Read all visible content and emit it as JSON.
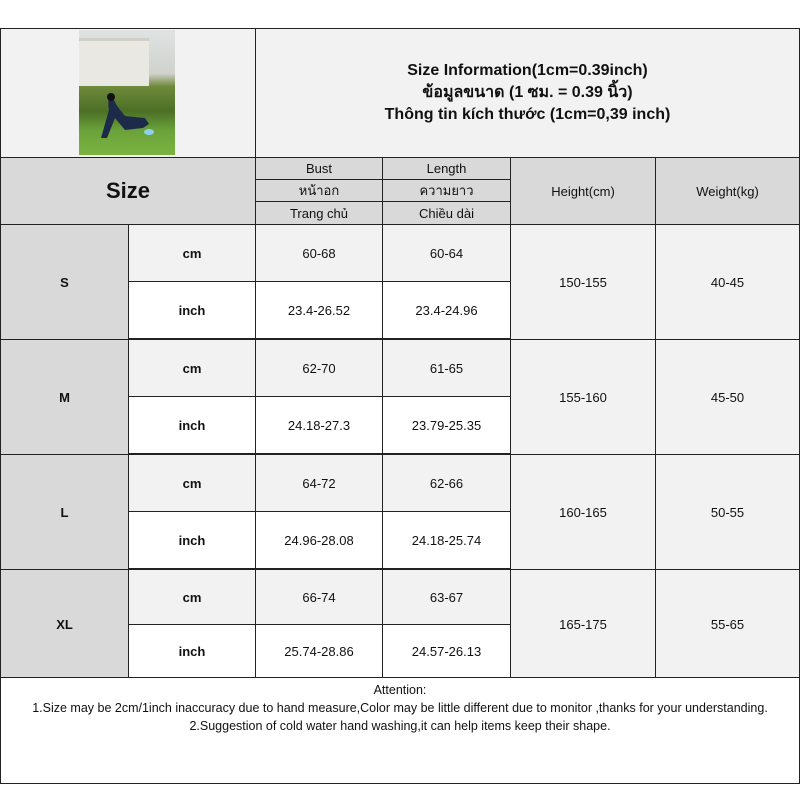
{
  "header": {
    "title_lines": [
      "Size Information(1cm=0.39inch)",
      "ข้อมูลขนาด (1 ซม. = 0.39 นิ้ว)",
      "Thông tin kích thước (1cm=0,39 inch)"
    ]
  },
  "columns": {
    "size": "Size",
    "bust": [
      "Bust",
      "หน้าอก",
      "Trang chủ"
    ],
    "length": [
      "Length",
      "ความยาว",
      "Chiều dài"
    ],
    "height": "Height(cm)",
    "weight": "Weight(kg)"
  },
  "sizes": [
    {
      "size": "S",
      "cm_label": "cm",
      "inch_label": "inch",
      "bust_cm": "60-68",
      "length_cm": "60-64",
      "bust_inch": "23.4-26.52",
      "length_inch": "23.4-24.96",
      "height": "150-155",
      "weight": "40-45"
    },
    {
      "size": "M",
      "cm_label": "cm",
      "inch_label": "inch",
      "bust_cm": "62-70",
      "length_cm": "61-65",
      "bust_inch": "24.18-27.3",
      "length_inch": "23.79-25.35",
      "height": "155-160",
      "weight": "45-50"
    },
    {
      "size": "L",
      "cm_label": "cm",
      "inch_label": "inch",
      "bust_cm": "64-72",
      "length_cm": "62-66",
      "bust_inch": "24.96-28.08",
      "length_inch": "24.18-25.74",
      "height": "160-165",
      "weight": "50-55"
    },
    {
      "size": "XL",
      "cm_label": "cm",
      "inch_label": "inch",
      "bust_cm": "66-74",
      "length_cm": "63-67",
      "bust_inch": "25.74-28.86",
      "length_inch": "24.57-26.13",
      "height": "165-175",
      "weight": "55-65"
    }
  ],
  "attention": {
    "heading": "Attention:",
    "lines": [
      "1.Size may be 2cm/1inch inaccuracy due to hand measure,Color may be little different due to monitor ,thanks for your understanding.",
      "2.Suggestion of cold water hand washing,it can help items keep their shape."
    ]
  },
  "colors": {
    "header_bg": "#d9d9d9",
    "light_bg": "#f2f2f2",
    "border": "#222222"
  }
}
